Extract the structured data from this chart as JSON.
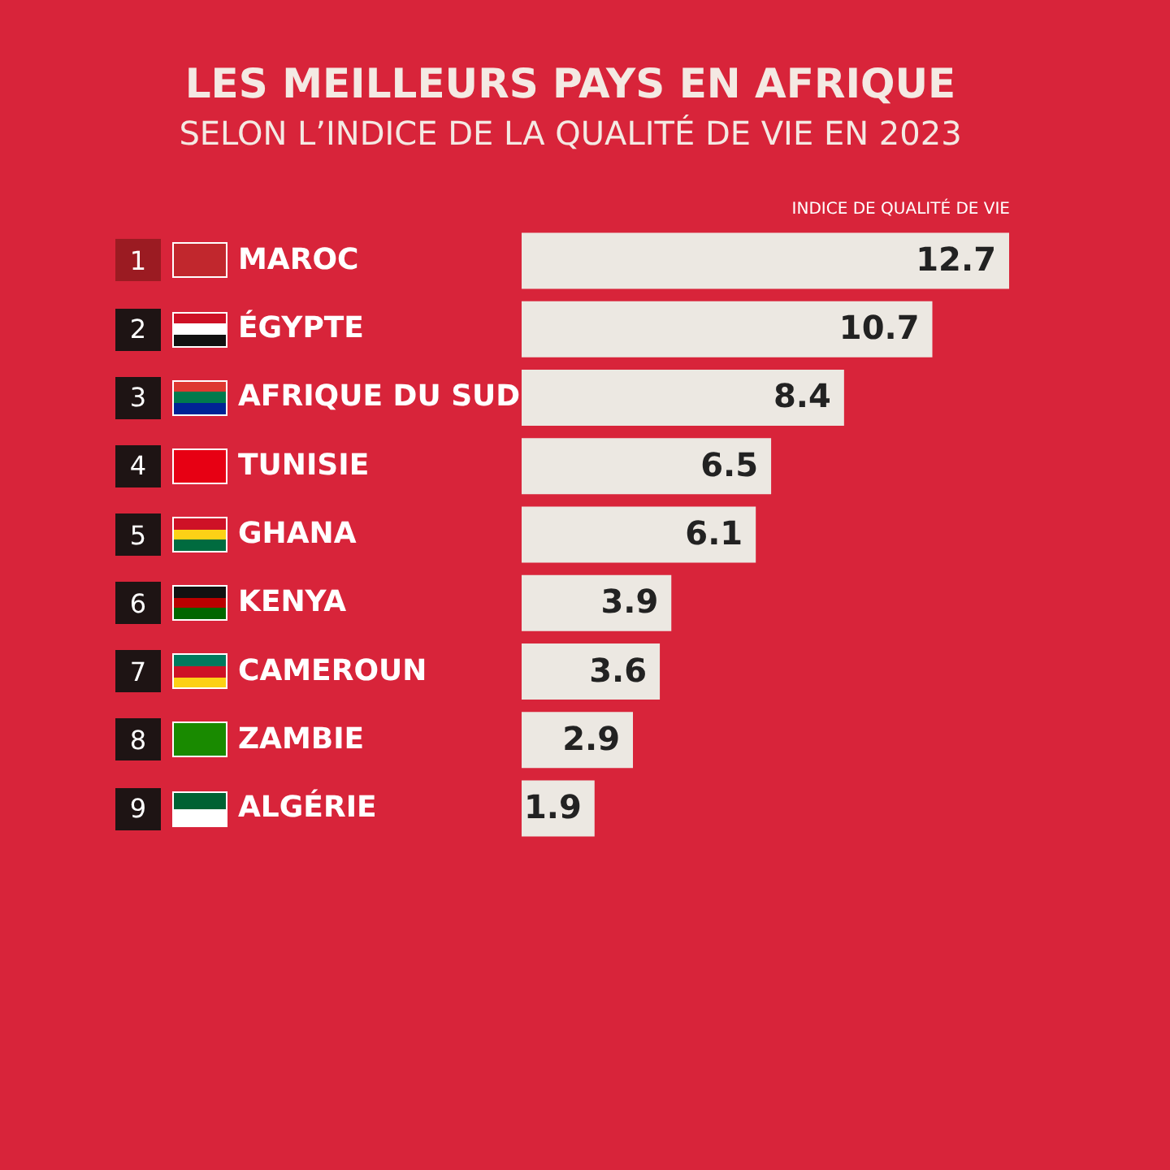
{
  "chart_data": {
    "type": "bar",
    "orientation": "horizontal",
    "title": "LES MEILLEURS PAYS EN AFRIQUE",
    "subtitle": "SELON L’INDICE DE LA QUALITÉ DE VIE EN 2023",
    "xlabel": "INDICE DE QUALITÉ DE VIE",
    "categories": [
      "MAROC",
      "ÉGYPTE",
      "AFRIQUE DU SUD",
      "TUNISIE",
      "GHANA",
      "KENYA",
      "CAMEROUN",
      "ZAMBIE",
      "ALGÉRIE"
    ],
    "values": [
      12.7,
      10.7,
      8.4,
      6.5,
      6.1,
      3.9,
      3.6,
      2.9,
      1.9
    ],
    "color": "#ece8e2",
    "data_labels": true,
    "annotations": [
      "1",
      "2",
      "3",
      "4",
      "5",
      "6",
      "7",
      "8",
      "9"
    ]
  }
}
